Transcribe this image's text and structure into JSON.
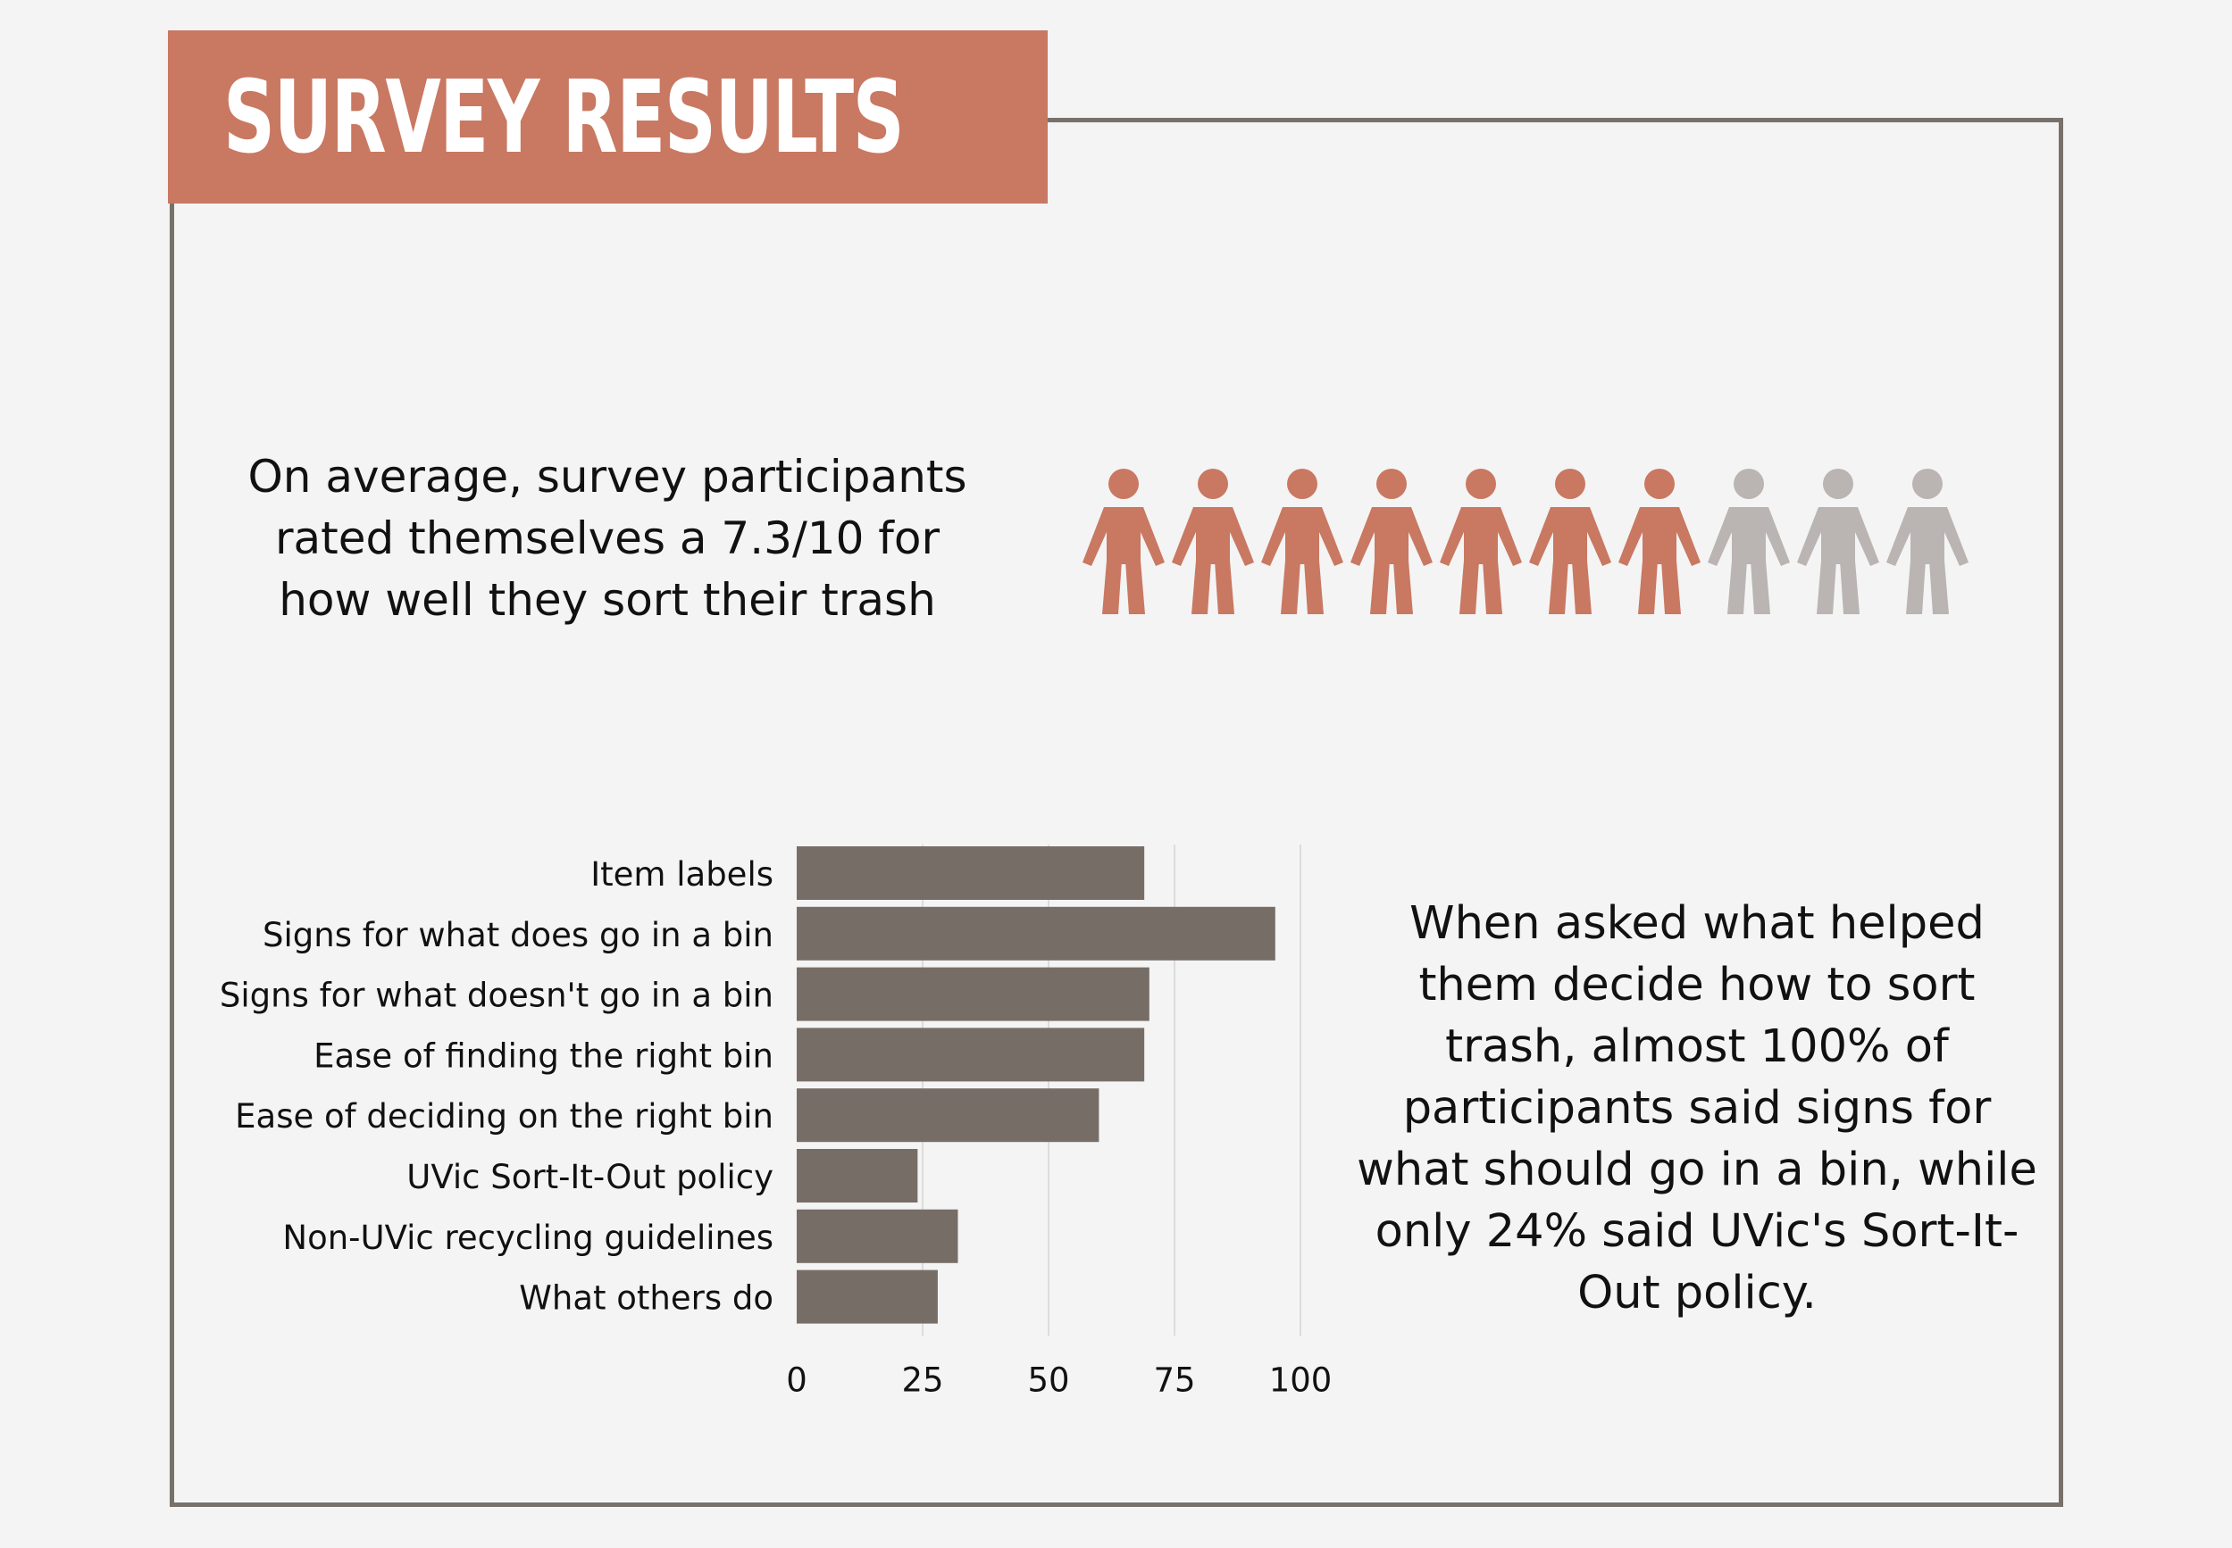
{
  "header": {
    "title": "SURVEY RESULTS"
  },
  "rating": {
    "text": "On average, survey participants rated themselves a 7.3/10 for how well they sort their trash",
    "pictogram": {
      "icon": "person-icon",
      "total": 10,
      "filled": 7,
      "filled_color": "#c97862",
      "empty_color": "#bab4b2"
    }
  },
  "summary": {
    "text": "When asked what helped them decide how to sort trash, almost 100% of participants said signs for what should go in a bin, while only 24% said UVic's Sort-It-Out policy."
  },
  "colors": {
    "accent": "#c97862",
    "bar": "#776d67",
    "frame": "#77706b",
    "background": "#f4f4f4"
  },
  "chart_data": {
    "type": "bar",
    "orientation": "horizontal",
    "categories": [
      "Item labels",
      "Signs for what does go in a bin",
      "Signs for what doesn't go in a bin",
      "Ease of finding the right bin",
      "Ease of deciding on the right bin",
      "UVic Sort-It-Out policy",
      "Non-UVic recycling guidelines",
      "What others do"
    ],
    "values": [
      69,
      95,
      70,
      69,
      60,
      24,
      32,
      28
    ],
    "xlim": [
      0,
      100
    ],
    "xticks": [
      "0",
      "25",
      "50",
      "75",
      "100"
    ],
    "grid": true,
    "title": "",
    "xlabel": "",
    "ylabel": ""
  }
}
